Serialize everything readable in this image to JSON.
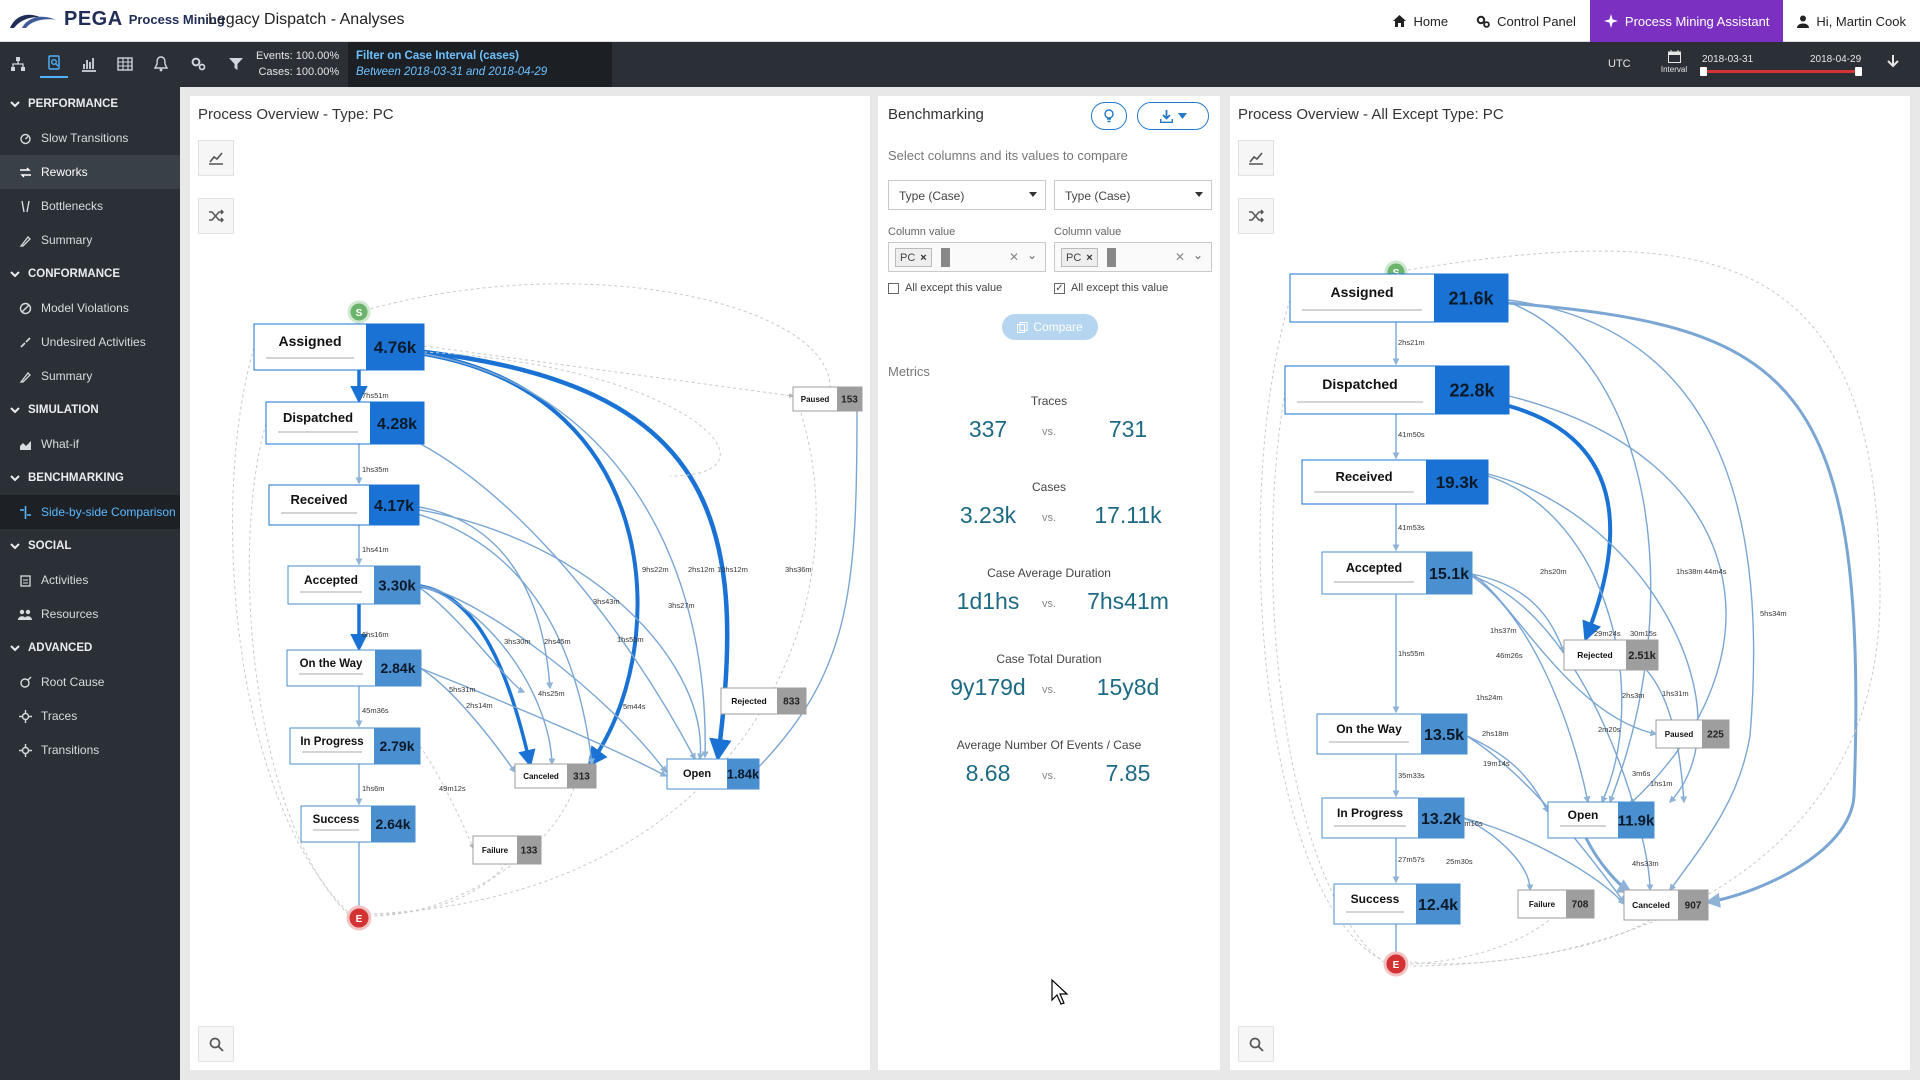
{
  "header": {
    "brand": "PEGA",
    "product": "Process Mining",
    "title": "Legacy Dispatch - Analyses",
    "nav": {
      "home": "Home",
      "control_panel": "Control Panel",
      "assistant": "Process Mining Assistant",
      "user": "Hi, Martin Cook"
    }
  },
  "toolbar": {
    "events": "Events: 100.00%",
    "cases": "Cases: 100.00%",
    "filter_title": "Filter on Case Interval (cases)",
    "filter_sub": "Between 2018-03-31 and 2018-04-29",
    "timezone": "UTC",
    "interval_label": "Interval",
    "date_start": "2018-03-31",
    "date_end": "2018-04-29"
  },
  "sidebar": {
    "sections": [
      {
        "label": "PERFORMANCE",
        "items": [
          "Slow Transitions",
          "Reworks",
          "Bottlenecks",
          "Summary"
        ]
      },
      {
        "label": "CONFORMANCE",
        "items": [
          "Model Violations",
          "Undesired Activities",
          "Summary"
        ]
      },
      {
        "label": "SIMULATION",
        "items": [
          "What-if"
        ]
      },
      {
        "label": "BENCHMARKING",
        "items": [
          "Side-by-side Comparison"
        ]
      },
      {
        "label": "SOCIAL",
        "items": [
          "Activities",
          "Resources"
        ]
      },
      {
        "label": "ADVANCED",
        "items": [
          "Root Cause",
          "Traces",
          "Transitions"
        ]
      }
    ]
  },
  "left_panel": {
    "title": "Process Overview - Type: PC",
    "nodes": [
      {
        "label": "Assigned",
        "value": "4.76k"
      },
      {
        "label": "Dispatched",
        "value": "4.28k"
      },
      {
        "label": "Received",
        "value": "4.17k"
      },
      {
        "label": "Accepted",
        "value": "3.30k"
      },
      {
        "label": "On the Way",
        "value": "2.84k"
      },
      {
        "label": "In Progress",
        "value": "2.79k"
      },
      {
        "label": "Success",
        "value": "2.64k"
      },
      {
        "label": "Paused",
        "value": "153"
      },
      {
        "label": "Rejected",
        "value": "833"
      },
      {
        "label": "Canceled",
        "value": "313"
      },
      {
        "label": "Open",
        "value": "1.84k"
      },
      {
        "label": "Failure",
        "value": "133"
      }
    ],
    "edge_labels": [
      "7hs51m",
      "1hs35m",
      "1hs41m",
      "6hs16m",
      "45m36s",
      "1hs6m",
      "49m12s",
      "2hs14m",
      "5hs31m",
      "4hs25m",
      "3hs30m",
      "2hs45m",
      "3hs43m",
      "1hs55m",
      "5m44s",
      "9hs22m",
      "2hs12m",
      "10hs12m",
      "3hs27m",
      "3hs36m"
    ]
  },
  "mid_panel": {
    "title": "Benchmarking",
    "hint": "Select columns and its values to compare",
    "left": {
      "column": "Type (Case)",
      "value_label": "Column value",
      "tag": "PC",
      "except_label": "All except this value",
      "except_checked": false
    },
    "right": {
      "column": "Type (Case)",
      "value_label": "Column value",
      "tag": "PC",
      "except_label": "All except this value",
      "except_checked": true
    },
    "compare": "Compare",
    "metrics_label": "Metrics",
    "vs": "vs.",
    "metrics": [
      {
        "name": "Traces",
        "a": "337",
        "b": "731"
      },
      {
        "name": "Cases",
        "a": "3.23k",
        "b": "17.11k"
      },
      {
        "name": "Case Average Duration",
        "a": "1d1hs",
        "b": "7hs41m"
      },
      {
        "name": "Case Total Duration",
        "a": "9y179d",
        "b": "15y8d"
      },
      {
        "name": "Average Number Of Events / Case",
        "a": "8.68",
        "b": "7.85"
      }
    ]
  },
  "right_panel": {
    "title": "Process Overview - All Except Type: PC",
    "nodes": [
      {
        "label": "Assigned",
        "value": "21.6k"
      },
      {
        "label": "Dispatched",
        "value": "22.8k"
      },
      {
        "label": "Received",
        "value": "19.3k"
      },
      {
        "label": "Accepted",
        "value": "15.1k"
      },
      {
        "label": "On the Way",
        "value": "13.5k"
      },
      {
        "label": "In Progress",
        "value": "13.2k"
      },
      {
        "label": "Success",
        "value": "12.4k"
      },
      {
        "label": "Rejected",
        "value": "2.51k"
      },
      {
        "label": "Paused",
        "value": "225"
      },
      {
        "label": "Open",
        "value": "11.9k"
      },
      {
        "label": "Failure",
        "value": "708"
      },
      {
        "label": "Canceled",
        "value": "907"
      }
    ],
    "edge_labels": [
      "2hs21m",
      "41m50s",
      "41m53s",
      "1hs55m",
      "35m33s",
      "27m57s",
      "25m30s",
      "18m16s",
      "19m14s",
      "2hs18m",
      "1hs24m",
      "46m26s",
      "1hs37m",
      "2hs20m",
      "29m24s",
      "30m15s",
      "2hs3m",
      "2m20s",
      "3m6s",
      "1hs39m",
      "1hs1m",
      "1hs31m",
      "1hs38m",
      "44m4s",
      "5hs34m",
      "4hs33m"
    ]
  },
  "start_marker": "S",
  "end_marker": "E",
  "colors": {
    "accent": "#2379c9",
    "node_dark": "#1a73d4",
    "node_mid": "#4a8fcf",
    "node_gray": "#9e9e9e",
    "start": "#6cb36c",
    "end": "#d23232",
    "assistant": "#7b30c2",
    "sidebar": "#2b3036"
  }
}
